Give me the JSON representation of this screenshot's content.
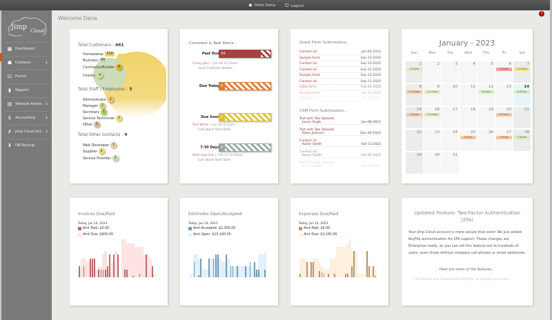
{
  "topbar": {
    "user_label": "Hello Dana",
    "logout_label": "Logout"
  },
  "brand": {
    "logo_text": "Jimp",
    "logo_script": "Cloud"
  },
  "sidebar": {
    "items": [
      {
        "label": "Dashboard",
        "icon": "dashboard-icon",
        "glyph": "▦",
        "has_arrow": false
      },
      {
        "label": "Contacts",
        "icon": "person-icon",
        "glyph": "☗",
        "has_arrow": true
      },
      {
        "label": "Forms",
        "icon": "form-check-icon",
        "glyph": "☑",
        "has_arrow": false
      },
      {
        "label": "Reports",
        "icon": "bar-chart-icon",
        "glyph": "▮",
        "has_arrow": false
      },
      {
        "label": "Website Admin",
        "icon": "website-icon",
        "glyph": "▤",
        "has_arrow": true
      },
      {
        "label": "Accounting",
        "icon": "dollar-icon",
        "glyph": "$",
        "has_arrow": true
      },
      {
        "label": "Jimp Cloud Acc.",
        "icon": "runner-icon",
        "glyph": "✗",
        "has_arrow": true
      },
      {
        "label": "DB Backup",
        "icon": "backup-icon",
        "glyph": "⬇",
        "has_arrow": false
      }
    ],
    "arrow_glyph": "↓"
  },
  "header": {
    "welcome": "Welcome Dana",
    "alert_badge": "!"
  },
  "contacts": {
    "customers_label": "Total Customers :",
    "customers_total": "461",
    "customers": [
      {
        "label": "Homeowner",
        "count": "358",
        "color": "#f0d46a"
      },
      {
        "label": "Business",
        "count": "95",
        "color": "#c9dcb8"
      },
      {
        "label": "Contractor/Builder",
        "count": "4",
        "color": "#e0b020"
      },
      {
        "label": "Charity",
        "count": "4",
        "color": "#d9dc9a"
      }
    ],
    "staff_label": "Total Staff / Employees :",
    "staff_total": "5",
    "staff": [
      {
        "label": "Administrator",
        "count": "1",
        "color": "#ecc06a"
      },
      {
        "label": "Manager",
        "count": "1",
        "color": "#d8d282"
      },
      {
        "label": "Secretary",
        "count": "1",
        "color": "#a9cf5a"
      },
      {
        "label": "Service Technician",
        "count": "1",
        "color": "#eedc6a"
      },
      {
        "label": "Other",
        "count": "1",
        "color": "#d4bc9a"
      }
    ],
    "other_label": "Total Other Contacts :",
    "other_total": "4",
    "other": [
      {
        "label": "Web Developer",
        "count": "1",
        "color": "#f2c8a0"
      },
      {
        "label": "Supplier",
        "count": "2",
        "color": "#f0d860"
      },
      {
        "label": "Service Provider",
        "count": "1",
        "color": "#c4dcb4"
      }
    ]
  },
  "alerts": {
    "title": "Comment & Task Alerts...",
    "groups": [
      {
        "label": "Past Due",
        "count": "34",
        "color": "#a94040"
      },
      {
        "label": "Due Today",
        "count": "0",
        "color": "#e07a30"
      },
      {
        "label": "Due Soon",
        "count": "2",
        "color": "#e0c030"
      },
      {
        "label": "7-30 Days",
        "count": "4",
        "color": "#9aa5a5"
      }
    ],
    "entries": [
      {
        "name": "Corey Jean",
        "date": "• Jan-08 11:30am",
        "desc": "Send Contract Update"
      },
      {
        "name": "Toni White",
        "date": "• Jan-20 8:15am",
        "desc": "Call about Start Date"
      },
      {
        "name": "Beth Sanchez",
        "date": "• Feb-12 10:00am",
        "desc": "Call about Start Date"
      }
    ]
  },
  "guest_forms": {
    "title": "Guest Form Submissions...",
    "rows": [
      {
        "name": "Contact Us",
        "date": "Jan-04-2023"
      },
      {
        "name": "Sample Form",
        "date": "Sep-13-2020"
      },
      {
        "name": "Contact Us",
        "date": "Sep-12-2020"
      },
      {
        "name": "Contact Us",
        "date": "Sep-12-2020"
      },
      {
        "name": "Sample Form",
        "date": "Sep-12-2020"
      },
      {
        "name": "Contact Us",
        "date": "Sep-11-2020"
      },
      {
        "name": "Little Form",
        "date": "Feb-01-2020"
      },
      {
        "name": "Sample Form",
        "date": "Jan-31-2020"
      },
      {
        "name": "Contact Us",
        "date": "Jan-08-2020"
      }
    ]
  },
  "crm_forms": {
    "title": "CRM Form Submissions...",
    "rows": [
      {
        "form": "Test with Two Uploads",
        "person": "Joann Singh",
        "date": "Jan-08-2023"
      },
      {
        "form": "Test with Two Uploads",
        "person": "Dana Johnson",
        "date": "Dec-26-2022"
      },
      {
        "form": "Contact Us",
        "person": "Karen Smith",
        "date": "Oct-11-2022"
      },
      {
        "form": "Contact Us",
        "person": "Karen Smith",
        "date": "Oct-04-2022"
      },
      {
        "form": "Test with Two Uploads",
        "person": "Karen Smith",
        "date": "Oct-04-2022"
      }
    ]
  },
  "calendar": {
    "title": "January - 2023",
    "dow": [
      "Sun",
      "Mon",
      "Tue",
      "Wed",
      "Thu",
      "Fri",
      "Sat"
    ],
    "weeks": [
      [
        {
          "d": "1",
          "ev": "3:30pm",
          "c": "#d8efc0"
        },
        {
          "d": "2"
        },
        {
          "d": "3"
        },
        {
          "d": "4"
        },
        {
          "d": "5"
        },
        {
          "d": "6",
          "ev": "9:45am",
          "c": "#f6a0a0"
        },
        {
          "d": "7",
          "ev": "12:45pm",
          "c": "#f5e690"
        }
      ],
      [
        {
          "d": "8",
          "ev": "11:30am",
          "c": "#f8c8a0"
        },
        {
          "d": "9",
          "ev": "11:15am",
          "c": "#d8efc0"
        },
        {
          "d": "10"
        },
        {
          "d": "11"
        },
        {
          "d": "12",
          "ev": "9:00am",
          "c": "#d8efc0"
        },
        {
          "d": "13"
        },
        {
          "d": "14",
          "ev": "8:00am",
          "c": "#d8efc0",
          "today": true
        }
      ],
      [
        {
          "d": "15",
          "ev": "1:00pm",
          "c": "#f8c8a0"
        },
        {
          "d": "16",
          "ev": "11:30am",
          "c": "#d8efc0"
        },
        {
          "d": "17"
        },
        {
          "d": "18"
        },
        {
          "d": "19"
        },
        {
          "d": "20",
          "ev": "8:15am",
          "c": "#f8c8a0"
        },
        {
          "d": "21"
        }
      ],
      [
        {
          "d": "22"
        },
        {
          "d": "23"
        },
        {
          "d": "24"
        },
        {
          "d": "25",
          "ev": "9:45am",
          "c": "#f8c8a0"
        },
        {
          "d": "26"
        },
        {
          "d": "27",
          "ev": "2:30pm",
          "c": "#f8c8a0"
        },
        {
          "d": "28",
          "ev": "3:30pm",
          "c": "#d8efc0"
        }
      ],
      [
        {
          "d": "29"
        },
        {
          "d": "30"
        },
        {
          "d": "31"
        }
      ]
    ]
  },
  "invoices": {
    "title": "Invoices Due/Paid",
    "date": "Today, Jan 14, 2023",
    "paid_label": "Amt Paid: $0.00",
    "due_label": "Amt Due: $600.00",
    "paid_color": "#b86a6a",
    "due_color": "#fde3e3",
    "due_bars": [
      2,
      5,
      5,
      4,
      4,
      4,
      2,
      2,
      2,
      3,
      3,
      6,
      7,
      2,
      1,
      4,
      4,
      7,
      5,
      0,
      10,
      10,
      9,
      9,
      9,
      9,
      8,
      8,
      8,
      8,
      6,
      6,
      6,
      5,
      1,
      1
    ],
    "paid_bars": [
      3,
      0,
      3,
      0,
      0,
      5,
      5,
      5,
      0,
      2,
      2,
      2,
      2,
      3,
      6,
      0,
      6,
      0,
      6,
      0,
      0,
      2,
      2,
      0,
      0,
      0.3,
      0,
      0,
      1,
      0,
      0,
      6,
      0,
      0,
      3,
      0
    ]
  },
  "estimates": {
    "title": "Estimates Open/Accepted",
    "date": "Today, Jan 14, 2023",
    "paid_label": "Amt Accepted: $2,356.00",
    "due_label": "Amt Open: $10,160.00",
    "paid_color": "#6f9db5",
    "due_color": "#e3effb",
    "due_bars": [
      1,
      1,
      6,
      6,
      5,
      0,
      2,
      2,
      2,
      2,
      5,
      5,
      5,
      5,
      5,
      4,
      4,
      5,
      5,
      3,
      3,
      3,
      3,
      3,
      3,
      3,
      3,
      3,
      3,
      3,
      1,
      1,
      6,
      6,
      6,
      7
    ],
    "paid_bars": [
      0,
      0,
      4,
      0,
      0.5,
      5,
      0,
      0,
      0,
      5,
      0,
      5,
      6,
      6,
      0,
      0,
      0,
      6,
      0,
      3,
      3,
      0,
      3,
      0,
      0,
      0,
      3,
      0,
      4,
      0,
      4,
      2,
      2,
      0,
      0,
      2
    ]
  },
  "expenses": {
    "title": "Expenses Due/Paid",
    "date": "Today, Jan 14, 2023",
    "paid_label": "Amt Paid: $0.00",
    "due_label": "Amt Due: $3,245.00",
    "paid_color": "#b99577",
    "due_color": "#fdf0dc",
    "due_bars": [
      5,
      5,
      5,
      0,
      4,
      4,
      5,
      5,
      5,
      4,
      3,
      2,
      2,
      2,
      5,
      5,
      5,
      8,
      8,
      8,
      8,
      8,
      9,
      10,
      7,
      7,
      7,
      1,
      1,
      1,
      1,
      7,
      3,
      3,
      3,
      2
    ],
    "paid_bars": [
      1,
      0,
      0,
      4,
      0,
      4,
      4,
      0,
      0,
      1.7,
      1.2,
      1,
      0,
      1,
      0,
      0,
      1,
      0,
      0,
      0,
      0,
      1,
      1,
      0,
      3,
      7,
      0,
      0,
      0,
      0,
      0,
      7,
      3,
      0,
      3,
      0.3
    ]
  },
  "news": {
    "title": "Updated Feature: Two-Factor Authentication (2FA)",
    "body": "Your Jimp.Cloud account is more secure than ever! We just added KeyFile authentication for 2FA support. These changes are Enterprise ready, so you can roll this feature out to hundreds of users, even those without company cell phones or email addresses.",
    "more": "Here are some of the features...",
    "bullet": "• Generate and download a KeyFile, or upload your own"
  }
}
